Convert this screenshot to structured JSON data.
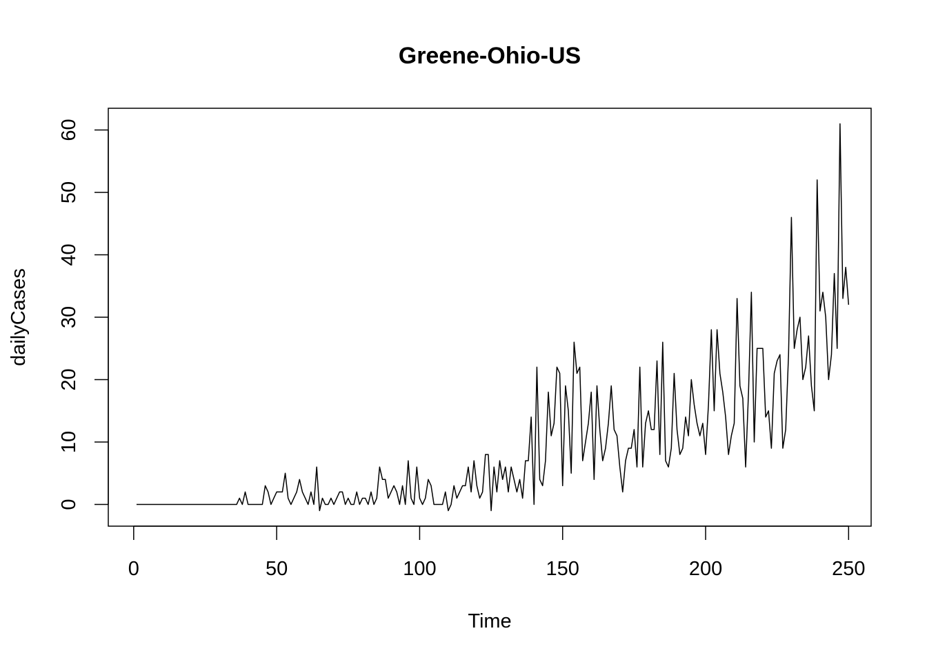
{
  "chart_data": {
    "type": "line",
    "title": "Greene-Ohio-US",
    "xlabel": "Time",
    "ylabel": "dailyCases",
    "xlim": [
      1,
      248
    ],
    "ylim": [
      -1,
      61
    ],
    "xticks": [
      0,
      50,
      100,
      150,
      200,
      250
    ],
    "yticks": [
      0,
      10,
      20,
      30,
      40,
      50,
      60
    ],
    "grid": false,
    "legend": "none",
    "line_color": "#000000",
    "series": [
      {
        "values": [
          0,
          0,
          0,
          0,
          0,
          0,
          0,
          0,
          0,
          0,
          0,
          0,
          0,
          0,
          0,
          0,
          0,
          0,
          0,
          0,
          0,
          0,
          0,
          0,
          0,
          0,
          0,
          0,
          0,
          0,
          0,
          0,
          0,
          0,
          0,
          0,
          1,
          0,
          2,
          0,
          0,
          0,
          0,
          0,
          0,
          3,
          2,
          0,
          1,
          2,
          2,
          2,
          5,
          1,
          0,
          1,
          2,
          4,
          2,
          1,
          0,
          2,
          0,
          6,
          -1,
          1,
          0,
          0,
          1,
          0,
          1,
          2,
          2,
          0,
          1,
          0,
          0,
          2,
          0,
          1,
          1,
          0,
          2,
          0,
          1,
          6,
          4,
          4,
          1,
          2,
          3,
          2,
          0,
          3,
          0,
          7,
          1,
          0,
          6,
          1,
          0,
          1,
          4,
          3,
          0,
          0,
          0,
          0,
          2,
          -1,
          0,
          3,
          1,
          2,
          3,
          3,
          6,
          2,
          7,
          3,
          1,
          2,
          8,
          8,
          -1,
          6,
          2,
          7,
          4,
          6,
          2,
          6,
          4,
          2,
          4,
          1,
          7,
          7,
          14,
          0,
          22,
          4,
          3,
          7,
          18,
          11,
          13,
          22,
          21,
          3,
          19,
          15,
          5,
          26,
          21,
          22,
          7,
          10,
          13,
          18,
          4,
          19,
          12,
          7,
          9,
          13,
          19,
          12,
          11,
          6,
          2,
          7,
          9,
          9,
          12,
          6,
          22,
          6,
          13,
          15,
          12,
          12,
          23,
          8,
          26,
          7,
          6,
          9,
          21,
          12,
          8,
          9,
          14,
          11,
          20,
          16,
          13,
          11,
          13,
          8,
          16,
          28,
          15,
          28,
          21,
          18,
          14,
          8,
          11,
          13,
          33,
          19,
          17,
          6,
          18,
          34,
          10,
          25,
          25,
          25,
          14,
          15,
          9,
          21,
          23,
          24,
          9,
          12,
          24,
          46,
          25,
          28,
          30,
          20,
          22,
          27,
          19,
          15,
          52,
          31,
          34,
          30,
          20,
          24,
          37,
          25,
          61,
          33,
          38,
          32
        ]
      }
    ]
  }
}
